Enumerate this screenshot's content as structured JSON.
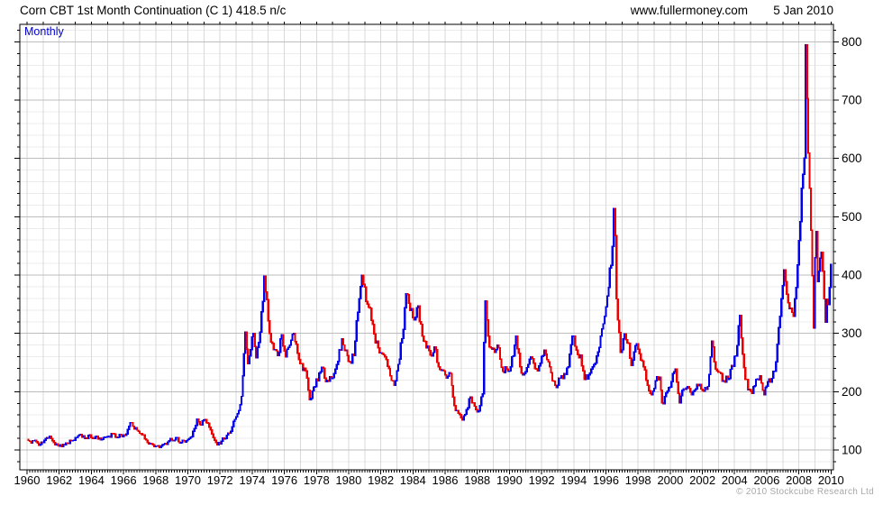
{
  "header": {
    "title": "Corn CBT 1st Month Continuation (C 1) 418.5 n/c",
    "website": "www.fullermoney.com",
    "date": "5 Jan 2010"
  },
  "chart": {
    "frequency_label": "Monthly",
    "copyright": "© 2010 Stockcube Research Ltd",
    "colors": {
      "up": "#0000ee",
      "down": "#ee0000",
      "frequency_label": "#0000cc",
      "grid_minor": "#ececec",
      "grid_major": "#bdbdbd",
      "grid_vertical": "#d9d9d9",
      "frame": "#000000",
      "tick": "#000000",
      "axis_text": "#000000"
    }
  },
  "chart_data": {
    "type": "line",
    "title": "Corn CBT 1st Month Continuation (C 1) 418.5 n/c",
    "series_name": "Corn CBT 1st Month Continuation (C 1)",
    "frequency": "Monthly",
    "last_value": 418.5,
    "last_date": "5 Jan 2010",
    "xlim": [
      1959.55,
      2010.15
    ],
    "ylim": [
      66,
      830
    ],
    "x_tick_labels": [
      "1960",
      "1962",
      "1964",
      "1966",
      "1968",
      "1970",
      "1972",
      "1974",
      "1976",
      "1978",
      "1980",
      "1982",
      "1984",
      "1986",
      "1988",
      "1990",
      "1992",
      "1994",
      "1996",
      "1998",
      "2000",
      "2002",
      "2004",
      "2006",
      "2008",
      "2010"
    ],
    "y_tick_labels": [
      100,
      200,
      300,
      400,
      500,
      600,
      700,
      800
    ],
    "y_grid_minor_step": 20,
    "y_grid_major_step": 100,
    "legend": "none",
    "anchor_points": [
      [
        1960.0,
        118
      ],
      [
        1960.25,
        112
      ],
      [
        1960.5,
        117
      ],
      [
        1960.75,
        108
      ],
      [
        1961.0,
        113
      ],
      [
        1961.25,
        121
      ],
      [
        1961.42,
        124
      ],
      [
        1961.67,
        113
      ],
      [
        1961.92,
        108
      ],
      [
        1962.17,
        106
      ],
      [
        1962.42,
        112
      ],
      [
        1962.75,
        116
      ],
      [
        1963.0,
        121
      ],
      [
        1963.33,
        127
      ],
      [
        1963.58,
        120
      ],
      [
        1963.83,
        125
      ],
      [
        1964.08,
        120
      ],
      [
        1964.33,
        124
      ],
      [
        1964.58,
        117
      ],
      [
        1964.83,
        122
      ],
      [
        1965.08,
        124
      ],
      [
        1965.33,
        128
      ],
      [
        1965.58,
        121
      ],
      [
        1965.83,
        126
      ],
      [
        1966.08,
        125
      ],
      [
        1966.42,
        147
      ],
      [
        1966.67,
        136
      ],
      [
        1966.92,
        132
      ],
      [
        1967.17,
        126
      ],
      [
        1967.42,
        117
      ],
      [
        1967.67,
        111
      ],
      [
        1968.0,
        107
      ],
      [
        1968.25,
        104
      ],
      [
        1968.5,
        110
      ],
      [
        1968.75,
        114
      ],
      [
        1969.0,
        117
      ],
      [
        1969.25,
        121
      ],
      [
        1969.5,
        112
      ],
      [
        1969.75,
        116
      ],
      [
        1970.0,
        118
      ],
      [
        1970.25,
        123
      ],
      [
        1970.58,
        153
      ],
      [
        1970.83,
        143
      ],
      [
        1971.08,
        152
      ],
      [
        1971.33,
        139
      ],
      [
        1971.58,
        121
      ],
      [
        1971.83,
        109
      ],
      [
        1972.08,
        115
      ],
      [
        1972.33,
        120
      ],
      [
        1972.58,
        129
      ],
      [
        1972.83,
        149
      ],
      [
        1973.08,
        162
      ],
      [
        1973.33,
        192
      ],
      [
        1973.58,
        302
      ],
      [
        1973.75,
        248
      ],
      [
        1973.92,
        272
      ],
      [
        1974.08,
        300
      ],
      [
        1974.25,
        258
      ],
      [
        1974.5,
        302
      ],
      [
        1974.75,
        398
      ],
      [
        1974.92,
        358
      ],
      [
        1975.08,
        300
      ],
      [
        1975.33,
        272
      ],
      [
        1975.58,
        262
      ],
      [
        1975.83,
        298
      ],
      [
        1976.08,
        260
      ],
      [
        1976.33,
        280
      ],
      [
        1976.58,
        300
      ],
      [
        1976.83,
        266
      ],
      [
        1977.08,
        248
      ],
      [
        1977.33,
        236
      ],
      [
        1977.58,
        186
      ],
      [
        1977.83,
        208
      ],
      [
        1978.08,
        219
      ],
      [
        1978.33,
        242
      ],
      [
        1978.58,
        217
      ],
      [
        1978.83,
        226
      ],
      [
        1979.08,
        231
      ],
      [
        1979.33,
        252
      ],
      [
        1979.58,
        291
      ],
      [
        1979.83,
        271
      ],
      [
        1980.08,
        251
      ],
      [
        1980.33,
        262
      ],
      [
        1980.58,
        336
      ],
      [
        1980.83,
        400
      ],
      [
        1981.08,
        355
      ],
      [
        1981.33,
        343
      ],
      [
        1981.58,
        299
      ],
      [
        1981.83,
        275
      ],
      [
        1982.08,
        265
      ],
      [
        1982.33,
        255
      ],
      [
        1982.58,
        227
      ],
      [
        1982.83,
        211
      ],
      [
        1983.08,
        247
      ],
      [
        1983.33,
        291
      ],
      [
        1983.62,
        368
      ],
      [
        1983.83,
        339
      ],
      [
        1984.08,
        323
      ],
      [
        1984.33,
        347
      ],
      [
        1984.58,
        295
      ],
      [
        1984.83,
        275
      ],
      [
        1985.08,
        263
      ],
      [
        1985.33,
        277
      ],
      [
        1985.58,
        243
      ],
      [
        1985.83,
        237
      ],
      [
        1986.08,
        223
      ],
      [
        1986.33,
        231
      ],
      [
        1986.58,
        176
      ],
      [
        1986.83,
        163
      ],
      [
        1987.08,
        151
      ],
      [
        1987.33,
        169
      ],
      [
        1987.58,
        191
      ],
      [
        1987.83,
        175
      ],
      [
        1988.08,
        167
      ],
      [
        1988.33,
        196
      ],
      [
        1988.5,
        356
      ],
      [
        1988.67,
        295
      ],
      [
        1988.83,
        275
      ],
      [
        1989.08,
        267
      ],
      [
        1989.33,
        275
      ],
      [
        1989.58,
        235
      ],
      [
        1989.83,
        239
      ],
      [
        1990.08,
        243
      ],
      [
        1990.42,
        295
      ],
      [
        1990.67,
        243
      ],
      [
        1990.92,
        231
      ],
      [
        1991.17,
        247
      ],
      [
        1991.42,
        257
      ],
      [
        1991.67,
        239
      ],
      [
        1991.92,
        249
      ],
      [
        1992.17,
        271
      ],
      [
        1992.42,
        251
      ],
      [
        1992.67,
        219
      ],
      [
        1992.92,
        207
      ],
      [
        1993.17,
        223
      ],
      [
        1993.42,
        231
      ],
      [
        1993.67,
        243
      ],
      [
        1993.92,
        295
      ],
      [
        1994.17,
        271
      ],
      [
        1994.42,
        263
      ],
      [
        1994.67,
        221
      ],
      [
        1994.92,
        229
      ],
      [
        1995.17,
        243
      ],
      [
        1995.42,
        261
      ],
      [
        1995.67,
        295
      ],
      [
        1995.92,
        329
      ],
      [
        1996.17,
        379
      ],
      [
        1996.42,
        449
      ],
      [
        1996.54,
        514
      ],
      [
        1996.67,
        359
      ],
      [
        1996.92,
        267
      ],
      [
        1997.17,
        299
      ],
      [
        1997.42,
        283
      ],
      [
        1997.58,
        245
      ],
      [
        1997.83,
        279
      ],
      [
        1998.08,
        265
      ],
      [
        1998.33,
        243
      ],
      [
        1998.58,
        211
      ],
      [
        1998.83,
        195
      ],
      [
        1999.08,
        219
      ],
      [
        1999.33,
        225
      ],
      [
        1999.54,
        181
      ],
      [
        1999.83,
        201
      ],
      [
        2000.08,
        217
      ],
      [
        2000.33,
        239
      ],
      [
        2000.58,
        181
      ],
      [
        2000.83,
        205
      ],
      [
        2001.08,
        209
      ],
      [
        2001.33,
        195
      ],
      [
        2001.58,
        205
      ],
      [
        2001.83,
        213
      ],
      [
        2002.08,
        201
      ],
      [
        2002.33,
        209
      ],
      [
        2002.58,
        287
      ],
      [
        2002.83,
        239
      ],
      [
        2003.08,
        233
      ],
      [
        2003.33,
        219
      ],
      [
        2003.58,
        221
      ],
      [
        2003.83,
        245
      ],
      [
        2004.08,
        261
      ],
      [
        2004.33,
        331
      ],
      [
        2004.58,
        241
      ],
      [
        2004.83,
        203
      ],
      [
        2005.08,
        197
      ],
      [
        2005.33,
        221
      ],
      [
        2005.58,
        227
      ],
      [
        2005.83,
        195
      ],
      [
        2006.08,
        217
      ],
      [
        2006.33,
        223
      ],
      [
        2006.58,
        251
      ],
      [
        2006.83,
        329
      ],
      [
        2007.08,
        409
      ],
      [
        2007.25,
        367
      ],
      [
        2007.5,
        343
      ],
      [
        2007.67,
        329
      ],
      [
        2007.83,
        379
      ],
      [
        2008.0,
        459
      ],
      [
        2008.17,
        549
      ],
      [
        2008.33,
        601
      ],
      [
        2008.45,
        795
      ],
      [
        2008.58,
        609
      ],
      [
        2008.67,
        549
      ],
      [
        2008.83,
        399
      ],
      [
        2008.92,
        309
      ],
      [
        2009.0,
        430
      ],
      [
        2009.08,
        475
      ],
      [
        2009.17,
        389
      ],
      [
        2009.33,
        429
      ],
      [
        2009.42,
        439
      ],
      [
        2009.58,
        359
      ],
      [
        2009.67,
        319
      ],
      [
        2009.75,
        359
      ],
      [
        2009.83,
        349
      ],
      [
        2009.92,
        379
      ],
      [
        2010.04,
        418.5
      ]
    ],
    "render": {
      "seed": 11,
      "jitter_amp": 0.03,
      "bar_width": 2.4
    }
  }
}
